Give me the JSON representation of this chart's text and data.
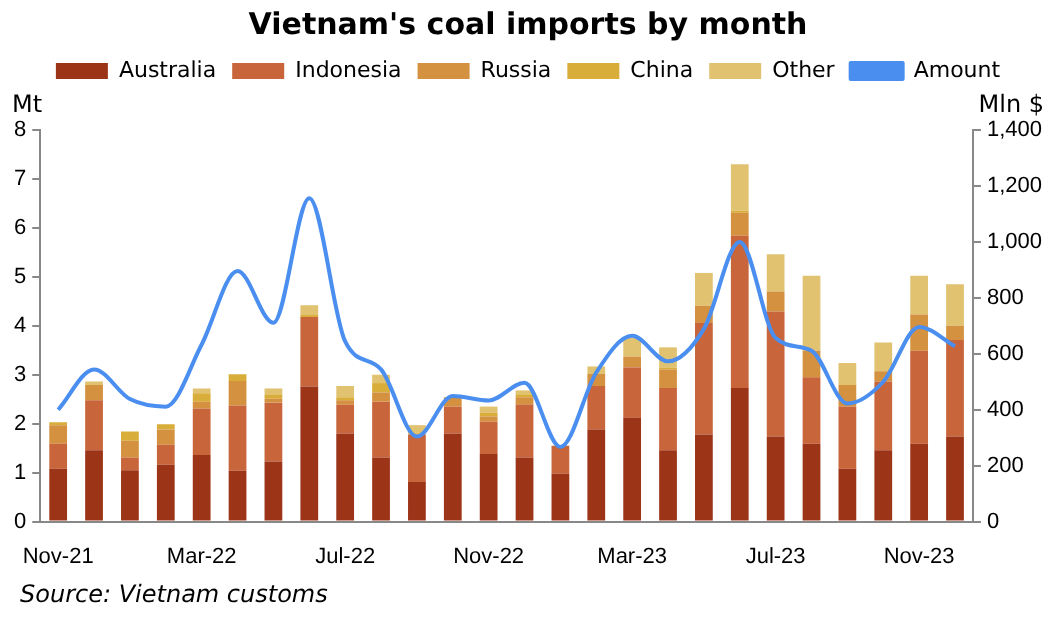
{
  "chart_data": {
    "type": "bar",
    "title": "Vietnam's coal imports by month",
    "ylabel": "Mt",
    "y2label": "Mln $",
    "categories": [
      "Nov-21",
      null,
      null,
      null,
      "Mar-22",
      null,
      null,
      null,
      "Jul-22",
      null,
      null,
      null,
      "Nov-22",
      null,
      null,
      null,
      "Mar-23",
      null,
      null,
      null,
      "Jul-23",
      null,
      null,
      null,
      "Nov-23",
      null
    ],
    "stacked": true,
    "series": [
      {
        "name": "Australia",
        "color": "#9c3418",
        "values": [
          1.08,
          1.46,
          1.05,
          1.16,
          1.36,
          1.04,
          1.23,
          2.76,
          1.8,
          1.31,
          0.81,
          1.8,
          1.38,
          1.31,
          0.98,
          1.88,
          2.12,
          1.46,
          1.78,
          2.73,
          1.74,
          1.59,
          1.08,
          1.46,
          1.59,
          1.74
        ]
      },
      {
        "name": "Indonesia",
        "color": "#c8653a",
        "values": [
          0.51,
          1.02,
          0.26,
          0.41,
          0.95,
          1.33,
          1.2,
          1.42,
          0.59,
          1.14,
          0.97,
          0.55,
          0.66,
          1.08,
          0.57,
          0.89,
          1.03,
          1.27,
          2.28,
          3.11,
          2.55,
          1.36,
          1.27,
          1.4,
          1.9,
          1.97
        ]
      },
      {
        "name": "Russia",
        "color": "#d4913f",
        "values": [
          0.38,
          0.31,
          0.34,
          0.31,
          0.14,
          0.5,
          0.08,
          0,
          0.09,
          0.19,
          null,
          0.19,
          0.11,
          0.15,
          null,
          0.25,
          0.22,
          0.38,
          0.35,
          0.47,
          0.41,
          0.54,
          0.44,
          0.21,
          0.74,
          0.29
        ]
      },
      {
        "name": "China",
        "color": "#d9ad3a",
        "values": [
          0.06,
          0,
          0.19,
          0.11,
          0.17,
          0.14,
          0.09,
          0.04,
          0.06,
          0.19,
          0,
          null,
          0.07,
          0.06,
          null,
          0,
          0,
          0.03,
          0,
          0.04,
          0,
          0,
          0,
          0,
          0,
          0
        ]
      },
      {
        "name": "Other",
        "color": "#e0c270",
        "values": [
          0,
          0.07,
          0,
          0,
          0.1,
          0,
          0.12,
          0.2,
          0.23,
          0.17,
          0.19,
          0,
          0.13,
          0.08,
          0,
          0.15,
          0.38,
          0.42,
          0.67,
          0.95,
          0.76,
          1.53,
          0.45,
          0.59,
          0.79,
          0.85
        ]
      },
      {
        "name": "Amount",
        "type": "line",
        "axis": "y2",
        "color": "#4a8ef0",
        "values": [
          400,
          544,
          438,
          411,
          633,
          896,
          711,
          1156,
          644,
          544,
          304,
          449,
          433,
          496,
          267,
          533,
          664,
          573,
          689,
          1000,
          656,
          611,
          422,
          500,
          696,
          627
        ]
      }
    ],
    "ylim": [
      0,
      8
    ],
    "yticks": [
      0,
      1,
      2,
      3,
      4,
      5,
      6,
      7,
      8
    ],
    "y2lim": [
      0,
      1400
    ],
    "y2ticks": [
      {
        "value": 0,
        "label": "0"
      },
      {
        "value": 200,
        "label": "200"
      },
      {
        "value": 400,
        "label": "400"
      },
      {
        "value": 600,
        "label": "600"
      },
      {
        "value": 800,
        "label": "800"
      },
      {
        "value": 1000,
        "label": "1,000"
      },
      {
        "value": 1200,
        "label": "1,200"
      },
      {
        "value": 1400,
        "label": "1,400"
      }
    ],
    "legend": "top",
    "marker": "none",
    "line_style": "solid",
    "annotations": [
      "Source: Vietnam customs"
    ]
  }
}
